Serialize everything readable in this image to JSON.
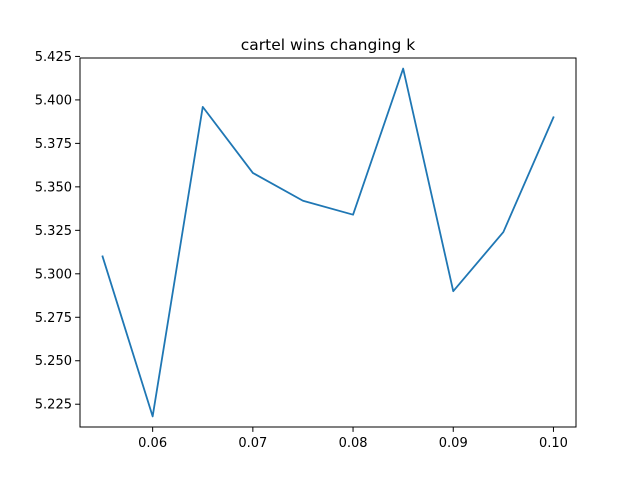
{
  "chart_data": {
    "type": "line",
    "title": "cartel wins changing k",
    "xlabel": "",
    "ylabel": "",
    "xlim": [
      0.05275,
      0.10225
    ],
    "ylim": [
      5.2119,
      5.4241
    ],
    "x_ticks": [
      {
        "value": 0.06,
        "label": "0.06"
      },
      {
        "value": 0.07,
        "label": "0.07"
      },
      {
        "value": 0.08,
        "label": "0.08"
      },
      {
        "value": 0.09,
        "label": "0.09"
      },
      {
        "value": 0.1,
        "label": "0.10"
      }
    ],
    "y_ticks": [
      {
        "value": 5.225,
        "label": "5.225"
      },
      {
        "value": 5.25,
        "label": "5.250"
      },
      {
        "value": 5.275,
        "label": "5.275"
      },
      {
        "value": 5.3,
        "label": "5.300"
      },
      {
        "value": 5.325,
        "label": "5.325"
      },
      {
        "value": 5.35,
        "label": "5.350"
      },
      {
        "value": 5.375,
        "label": "5.375"
      },
      {
        "value": 5.4,
        "label": "5.400"
      },
      {
        "value": 5.425,
        "label": "5.425"
      }
    ],
    "grid": false,
    "series": [
      {
        "color": "#1f77b4",
        "x": [
          0.055,
          0.06,
          0.065,
          0.07,
          0.075,
          0.08,
          0.085,
          0.09,
          0.095,
          0.1
        ],
        "y": [
          5.31,
          5.218,
          5.396,
          5.358,
          5.342,
          5.334,
          5.418,
          5.29,
          5.324,
          5.39
        ]
      }
    ]
  }
}
